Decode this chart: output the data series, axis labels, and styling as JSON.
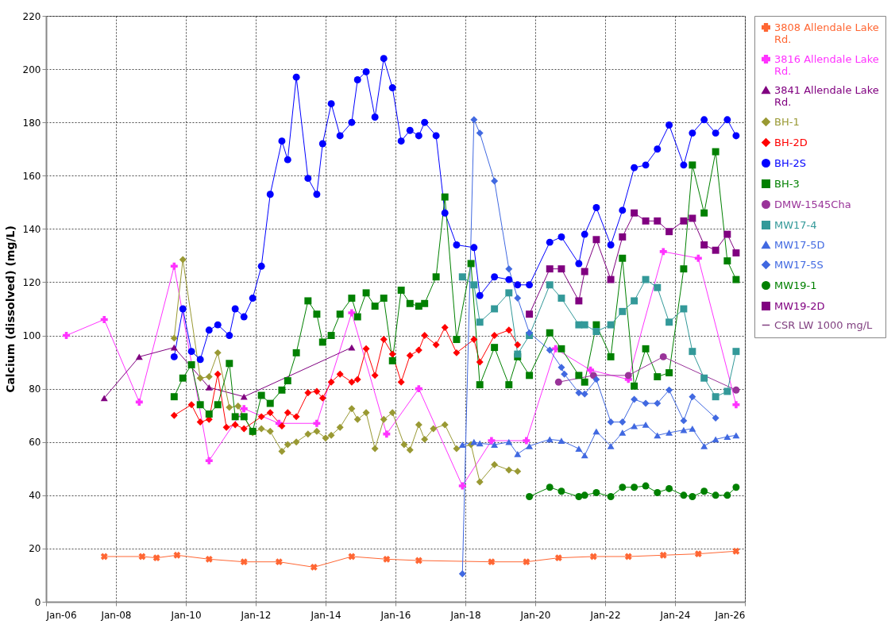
{
  "chart_data": {
    "type": "line",
    "ylabel": "Calcium (dissolved) (mg/L)",
    "xlim": [
      "2006-01",
      "2026-01"
    ],
    "ylim": [
      0,
      220
    ],
    "xticks": [
      {
        "value": "2006-01",
        "label": "Jan-06"
      },
      {
        "value": "2008-01",
        "label": "Jan-08"
      },
      {
        "value": "2010-01",
        "label": "Jan-10"
      },
      {
        "value": "2012-01",
        "label": "Jan-12"
      },
      {
        "value": "2014-01",
        "label": "Jan-14"
      },
      {
        "value": "2016-01",
        "label": "Jan-16"
      },
      {
        "value": "2018-01",
        "label": "Jan-18"
      },
      {
        "value": "2020-01",
        "label": "Jan-20"
      },
      {
        "value": "2022-01",
        "label": "Jan-22"
      },
      {
        "value": "2024-01",
        "label": "Jan-24"
      },
      {
        "value": "2026-01",
        "label": "Jan-26"
      }
    ],
    "yticks": [
      0,
      20,
      40,
      60,
      80,
      100,
      120,
      140,
      160,
      180,
      200,
      220
    ],
    "grid": true,
    "legend": "right",
    "series": [
      {
        "name": "3808 Allendale Lake Rd.",
        "type": "line",
        "marker": "x",
        "color": "#ff6633",
        "x": [
          "2007-09",
          "2008-10",
          "2009-03",
          "2009-10",
          "2010-09",
          "2011-09",
          "2012-09",
          "2013-09",
          "2014-10",
          "2015-10",
          "2016-09",
          "2018-10",
          "2019-10",
          "2020-09",
          "2021-09",
          "2022-09",
          "2023-09",
          "2024-09",
          "2025-10"
        ],
        "values": [
          17,
          17,
          16.5,
          17.5,
          16,
          15,
          15,
          13,
          17,
          16,
          15.5,
          15,
          15,
          16.5,
          17,
          17,
          17.5,
          18,
          19
        ]
      },
      {
        "name": "3816 Allendale Lake Rd.",
        "type": "line",
        "marker": "cross",
        "color": "#ff33ff",
        "x": [
          "2006-08",
          "2007-09",
          "2008-09",
          "2009-09",
          "2010-09",
          "2011-09",
          "2012-09",
          "2013-10",
          "2014-10",
          "2015-10",
          "2016-09",
          "2017-12",
          "2018-10",
          "2019-10",
          "2020-08",
          "2021-08",
          "2022-09",
          "2023-09",
          "2024-09",
          "2025-10"
        ],
        "values": [
          100,
          106,
          75,
          126,
          53,
          72.5,
          67,
          67,
          108.5,
          63,
          80,
          43.5,
          60.5,
          60.5,
          95,
          87,
          83.5,
          131.5,
          129,
          74
        ]
      },
      {
        "name": "3841 Allendale Lake Rd.",
        "type": "line",
        "marker": "triangle",
        "color": "#800080",
        "x": [
          "2007-09",
          "2008-09",
          "2009-09",
          "2010-09",
          "2011-09",
          "2014-10"
        ],
        "values": [
          76.5,
          92,
          95.5,
          80.5,
          77,
          95.5
        ]
      },
      {
        "name": "BH-1",
        "type": "line",
        "marker": "diamond",
        "color": "#999933",
        "x": [
          "2009-09",
          "2009-12",
          "2010-06",
          "2010-09",
          "2010-12",
          "2011-04",
          "2011-07",
          "2011-12",
          "2012-03",
          "2012-06",
          "2012-10",
          "2012-12",
          "2013-03",
          "2013-07",
          "2013-10",
          "2014-01",
          "2014-03",
          "2014-06",
          "2014-10",
          "2014-12",
          "2015-03",
          "2015-06",
          "2015-09",
          "2015-12",
          "2016-04",
          "2016-06",
          "2016-09",
          "2016-11",
          "2017-02",
          "2017-06",
          "2017-10",
          "2018-03",
          "2018-06",
          "2018-11",
          "2019-04",
          "2019-07"
        ],
        "values": [
          99,
          128.5,
          84,
          84.5,
          93.5,
          73,
          73.5,
          63.5,
          65,
          64,
          56.5,
          59,
          60,
          63,
          64,
          61.5,
          62.5,
          65.5,
          72.5,
          68.5,
          71,
          57.5,
          68.5,
          71,
          59,
          57,
          66.5,
          61,
          65,
          66.5,
          57.5,
          59,
          45,
          51.5,
          49.5,
          49
        ]
      },
      {
        "name": "BH-2D",
        "type": "line",
        "marker": "diamond",
        "color": "#ff0000",
        "x": [
          "2009-09",
          "2010-03",
          "2010-06",
          "2010-09",
          "2010-12",
          "2011-03",
          "2011-06",
          "2011-09",
          "2012-03",
          "2012-06",
          "2012-10",
          "2012-12",
          "2013-03",
          "2013-07",
          "2013-10",
          "2013-12",
          "2014-03",
          "2014-06",
          "2014-10",
          "2014-12",
          "2015-03",
          "2015-06",
          "2015-09",
          "2015-12",
          "2016-03",
          "2016-06",
          "2016-09",
          "2016-11",
          "2017-03",
          "2017-06",
          "2017-10",
          "2018-04",
          "2018-06",
          "2018-11",
          "2019-04",
          "2019-07"
        ],
        "values": [
          70,
          74,
          67.5,
          68.5,
          85.5,
          65.5,
          66.5,
          65,
          69.5,
          71,
          66,
          71,
          69.5,
          78.5,
          79,
          76.5,
          82.5,
          85.5,
          82.5,
          83.5,
          95,
          85,
          98.5,
          93,
          82.5,
          92.5,
          94.5,
          100,
          96.5,
          103,
          93.5,
          98.5,
          90,
          100,
          102,
          96.5
        ]
      },
      {
        "name": "BH-2S",
        "type": "line",
        "marker": "circle",
        "color": "#0000ff",
        "x": [
          "2009-09",
          "2009-12",
          "2010-03",
          "2010-06",
          "2010-09",
          "2010-12",
          "2011-04",
          "2011-06",
          "2011-09",
          "2011-12",
          "2012-03",
          "2012-06",
          "2012-10",
          "2012-12",
          "2013-03",
          "2013-07",
          "2013-10",
          "2013-12",
          "2014-03",
          "2014-06",
          "2014-10",
          "2014-12",
          "2015-03",
          "2015-06",
          "2015-09",
          "2015-12",
          "2016-03",
          "2016-06",
          "2016-09",
          "2016-11",
          "2017-03",
          "2017-06",
          "2017-10",
          "2018-04",
          "2018-06",
          "2018-11",
          "2019-04",
          "2019-07",
          "2019-11",
          "2020-06",
          "2020-10",
          "2021-04",
          "2021-06",
          "2021-10",
          "2022-03",
          "2022-07",
          "2022-11",
          "2023-03",
          "2023-07",
          "2023-11",
          "2024-04",
          "2024-07",
          "2024-11",
          "2025-03",
          "2025-07",
          "2025-10"
        ],
        "values": [
          92,
          110,
          94,
          91,
          102,
          104,
          100,
          110,
          107,
          114,
          126,
          153,
          173,
          166,
          197,
          159,
          153,
          172,
          187,
          175,
          180,
          196,
          199,
          182,
          204,
          193,
          173,
          177,
          175,
          180,
          175,
          146,
          134,
          133,
          115,
          122,
          121,
          119,
          119,
          135,
          137,
          127,
          138,
          148,
          134,
          147,
          163,
          164,
          170,
          179,
          164,
          176,
          181,
          176,
          181,
          175
        ]
      },
      {
        "name": "BH-3",
        "type": "line",
        "marker": "square",
        "color": "#008000",
        "x": [
          "2009-09",
          "2009-12",
          "2010-03",
          "2010-06",
          "2010-09",
          "2010-12",
          "2011-04",
          "2011-06",
          "2011-09",
          "2011-12",
          "2012-03",
          "2012-06",
          "2012-10",
          "2012-12",
          "2013-03",
          "2013-07",
          "2013-10",
          "2013-12",
          "2014-03",
          "2014-06",
          "2014-10",
          "2014-12",
          "2015-03",
          "2015-06",
          "2015-09",
          "2015-12",
          "2016-03",
          "2016-06",
          "2016-09",
          "2016-11",
          "2017-03",
          "2017-06",
          "2017-10",
          "2018-03",
          "2018-06",
          "2018-11",
          "2019-04",
          "2019-07",
          "2019-11",
          "2020-06",
          "2020-10",
          "2021-04",
          "2021-06",
          "2021-10",
          "2022-03",
          "2022-07",
          "2022-11",
          "2023-03",
          "2023-07",
          "2023-11",
          "2024-04",
          "2024-07",
          "2024-11",
          "2025-03",
          "2025-07",
          "2025-10"
        ],
        "values": [
          77,
          84,
          89,
          74,
          70.5,
          74,
          89.5,
          69.5,
          69.5,
          64,
          77.5,
          74.5,
          79.5,
          83,
          93.5,
          113,
          108,
          97.5,
          100,
          108,
          114,
          107,
          116,
          111,
          114,
          90.5,
          117,
          112,
          111,
          112,
          122,
          152,
          98.5,
          127,
          81.5,
          95.5,
          81.5,
          92,
          85,
          101,
          95,
          85,
          82.5,
          104,
          92,
          129,
          81,
          95,
          84.5,
          86,
          125,
          164,
          146,
          169,
          128,
          121
        ]
      },
      {
        "name": "DMW-1545Cha",
        "type": "line",
        "marker": "circle",
        "color": "#993399",
        "x": [
          "2020-09",
          "2021-09",
          "2022-09",
          "2023-09",
          "2025-10"
        ],
        "values": [
          82.5,
          85,
          85,
          92,
          79.5
        ]
      },
      {
        "name": "MW17-4",
        "type": "line",
        "marker": "square",
        "color": "#339999",
        "x": [
          "2017-12",
          "2018-04",
          "2018-06",
          "2018-11",
          "2019-04",
          "2019-07",
          "2019-11",
          "2020-06",
          "2020-10",
          "2021-04",
          "2021-06",
          "2021-10",
          "2022-03",
          "2022-07",
          "2022-11",
          "2023-03",
          "2023-07",
          "2023-11",
          "2024-04",
          "2024-07",
          "2024-11",
          "2025-03",
          "2025-07",
          "2025-10"
        ],
        "values": [
          122,
          119,
          105,
          110,
          116,
          93,
          100,
          119,
          114,
          104,
          104,
          101.5,
          104,
          109,
          113,
          121,
          118,
          105,
          110,
          94,
          84,
          77,
          79,
          94
        ]
      },
      {
        "name": "MW17-5D",
        "type": "line",
        "marker": "triangle",
        "color": "#4169e1",
        "x": [
          "2017-12",
          "2018-04",
          "2018-06",
          "2018-11",
          "2019-04",
          "2019-07",
          "2019-11",
          "2020-06",
          "2020-10",
          "2021-04",
          "2021-06",
          "2021-10",
          "2022-03",
          "2022-07",
          "2022-11",
          "2023-03",
          "2023-07",
          "2023-11",
          "2024-04",
          "2024-07",
          "2024-11",
          "2025-03",
          "2025-07",
          "2025-10"
        ],
        "values": [
          59,
          60,
          59.5,
          59,
          60,
          55.5,
          58.5,
          61,
          60.5,
          57.5,
          55,
          64,
          58.5,
          63.5,
          66,
          66.5,
          62.5,
          63.5,
          64.5,
          65,
          58.5,
          61,
          62,
          62.5
        ]
      },
      {
        "name": "MW17-5S",
        "type": "line",
        "marker": "diamond",
        "color": "#4169e1",
        "x": [
          "2017-12",
          "2018-04",
          "2018-06",
          "2018-11",
          "2019-04",
          "2019-07",
          "2019-11",
          "2020-06",
          "2020-10",
          "2020-11",
          "2021-04",
          "2021-06",
          "2021-10",
          "2022-03",
          "2022-07",
          "2022-11",
          "2023-03",
          "2023-07",
          "2023-11",
          "2024-04",
          "2024-07",
          "2025-03"
        ],
        "values": [
          10.5,
          181,
          176,
          158,
          125,
          114,
          101,
          94.5,
          88,
          85.5,
          78.5,
          78,
          83.5,
          67.5,
          67.5,
          76,
          74.5,
          74.5,
          79.5,
          68,
          77,
          69
        ]
      },
      {
        "name": "MW19-1",
        "type": "line",
        "marker": "circle",
        "color": "#008000",
        "x": [
          "2019-11",
          "2020-06",
          "2020-10",
          "2021-04",
          "2021-06",
          "2021-10",
          "2022-03",
          "2022-07",
          "2022-11",
          "2023-03",
          "2023-07",
          "2023-11",
          "2024-04",
          "2024-07",
          "2024-11",
          "2025-03",
          "2025-07",
          "2025-10"
        ],
        "values": [
          39.5,
          43,
          41.5,
          39.5,
          40,
          41,
          39.5,
          43,
          43,
          43.5,
          41,
          42.5,
          40,
          39.5,
          41.5,
          40,
          40,
          43
        ]
      },
      {
        "name": "MW19-2D",
        "type": "line",
        "marker": "square",
        "color": "#800080",
        "x": [
          "2019-11",
          "2020-06",
          "2020-10",
          "2021-04",
          "2021-06",
          "2021-10",
          "2022-03",
          "2022-07",
          "2022-11",
          "2023-03",
          "2023-07",
          "2023-11",
          "2024-04",
          "2024-07",
          "2024-11",
          "2025-03",
          "2025-07",
          "2025-10"
        ],
        "values": [
          108,
          125,
          125,
          113,
          124,
          136,
          121,
          137,
          146,
          143,
          143,
          139,
          143,
          144,
          134,
          132,
          138,
          131
        ]
      },
      {
        "name": "CSR LW 1000 mg/L",
        "type": "line",
        "marker": "none",
        "color": "#804080"
      }
    ]
  }
}
